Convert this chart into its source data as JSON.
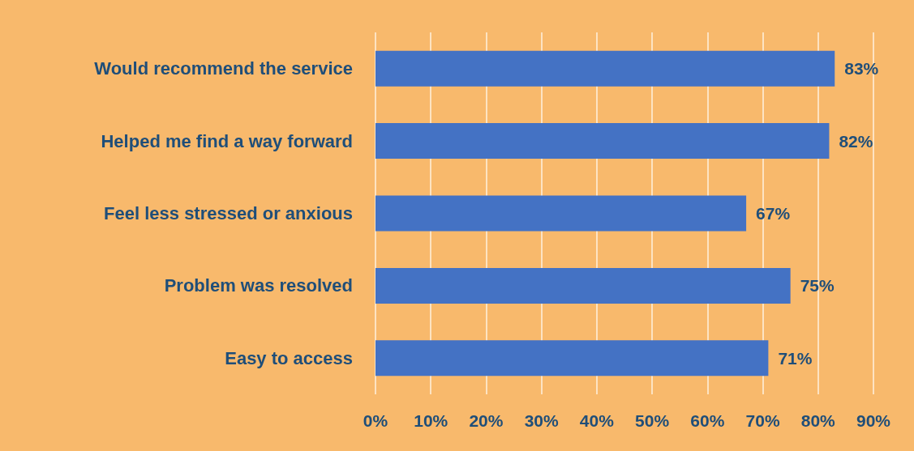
{
  "chart_data": {
    "type": "bar",
    "orientation": "horizontal",
    "categories": [
      "Would recommend the service",
      "Helped me find a way forward",
      "Feel less stressed or anxious",
      "Problem was resolved",
      "Easy to access"
    ],
    "values": [
      83,
      82,
      67,
      75,
      71
    ],
    "value_labels": [
      "83%",
      "82%",
      "67%",
      "75%",
      "71%"
    ],
    "color": "#4472c4",
    "xlim": [
      0,
      90
    ],
    "xticks": [
      {
        "value": 0,
        "label": "0%"
      },
      {
        "value": 10,
        "label": "10%"
      },
      {
        "value": 20,
        "label": "20%"
      },
      {
        "value": 30,
        "label": "30%"
      },
      {
        "value": 40,
        "label": "40%"
      },
      {
        "value": 50,
        "label": "50%"
      },
      {
        "value": 60,
        "label": "60%"
      },
      {
        "value": 70,
        "label": "70%"
      },
      {
        "value": 80,
        "label": "80%"
      },
      {
        "value": 90,
        "label": "90%"
      }
    ],
    "grid": "x"
  }
}
